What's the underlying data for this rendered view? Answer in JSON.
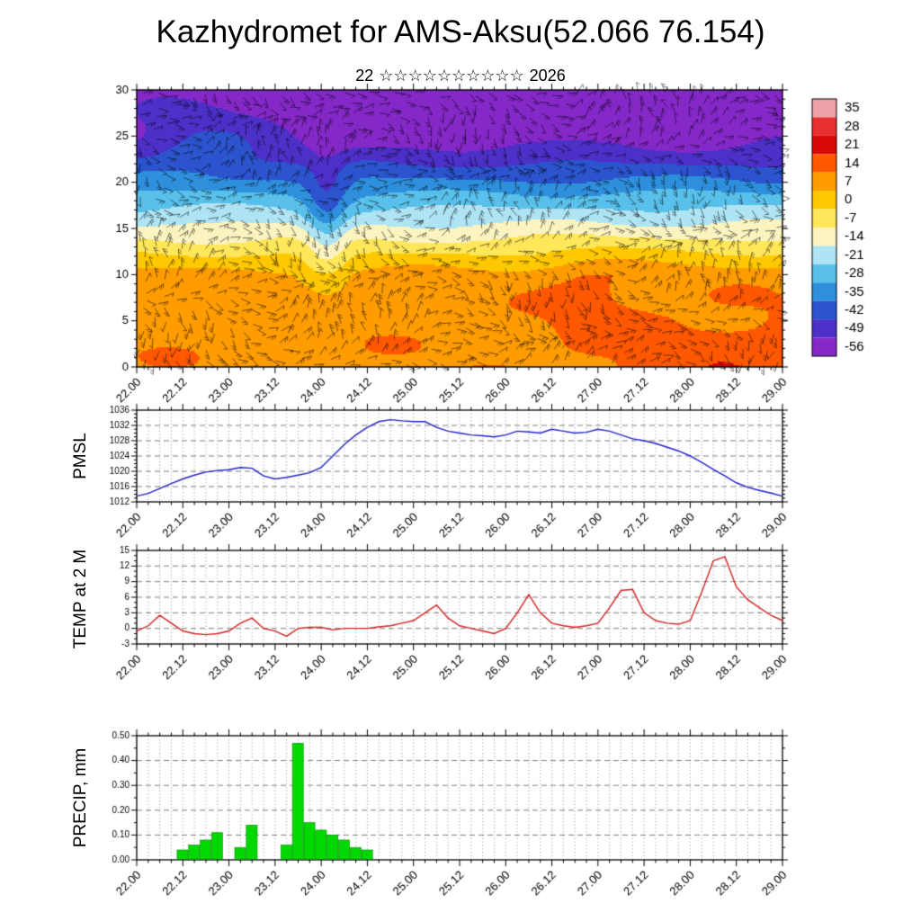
{
  "title": "Kazhydromet for AMS-Aksu(52.066 76.154)",
  "date_line": {
    "day": "22",
    "stars": "☆☆☆☆☆☆☆☆☆☆",
    "year": "2026"
  },
  "x_axis": {
    "tick_labels": [
      "22.00",
      "22.12",
      "23.00",
      "23.12",
      "24.00",
      "24.12",
      "25.00",
      "25.12",
      "26.00",
      "26.12",
      "27.00",
      "27.12",
      "28.00",
      "28.12",
      "29.00"
    ],
    "minor_step_hours": 3,
    "major_step_hours": 12,
    "range_days": 7
  },
  "chart_data": [
    {
      "type": "heatmap",
      "name": "temperature-wind-cross-section",
      "ylim": [
        0,
        30
      ],
      "yticks": [
        0,
        5,
        10,
        15,
        20,
        25,
        30
      ],
      "wind_barbs": true,
      "colorbar": {
        "ticks": [
          "35",
          "28",
          "21",
          "14",
          "7",
          "0",
          "-7",
          "-14",
          "-21",
          "-28",
          "-35",
          "-42",
          "-49",
          "-56"
        ],
        "values": [
          35,
          28,
          21,
          14,
          7,
          0,
          -7,
          -14,
          -21,
          -28,
          -35,
          -42,
          -49,
          -56
        ],
        "colors": [
          "#f0a0a8",
          "#e83030",
          "#d80808",
          "#ff5800",
          "#ff9c00",
          "#ffc800",
          "#ffe75a",
          "#fbf3c0",
          "#aee4f4",
          "#58c0ea",
          "#2e8fdc",
          "#2c54ce",
          "#4c30c8",
          "#8428c8"
        ]
      },
      "field": {
        "profile": [
          [
            0,
            9
          ],
          [
            4,
            8.8
          ],
          [
            8,
            7.5
          ],
          [
            10,
            6
          ],
          [
            11,
            2
          ],
          [
            12,
            -2
          ],
          [
            13,
            -6.5
          ],
          [
            14,
            -11
          ],
          [
            15,
            -15
          ],
          [
            16,
            -19.5
          ],
          [
            17,
            -23.5
          ],
          [
            18,
            -27.5
          ],
          [
            19,
            -32
          ],
          [
            20,
            -37
          ],
          [
            21,
            -41
          ],
          [
            22,
            -45.5
          ],
          [
            23,
            -49.5
          ],
          [
            24,
            -52.5
          ],
          [
            25,
            -54.5
          ],
          [
            26,
            -55.5
          ],
          [
            30,
            -55.5
          ]
        ],
        "cold_dip": {
          "x": 2.05,
          "xw": 0.22,
          "amp": -14,
          "yc": 16,
          "yw": 7
        },
        "upper_patch": {
          "x": 0.7,
          "xw": 0.7,
          "amp": 10,
          "yc": 24.5,
          "yw": 3.5
        },
        "warm_bulge": {
          "x": 4.9,
          "xw": 0.6,
          "amp": 5,
          "yc": 9,
          "yw": 4.5
        },
        "low_warm": {
          "x0": 4,
          "rate": 3,
          "max": 7,
          "ydecay": 6
        },
        "wave_amp": 1.5
      }
    },
    {
      "type": "line",
      "name": "pmsl",
      "ylabel": "PMSL",
      "ylim": [
        1012,
        1036
      ],
      "yticks": [
        1012,
        1016,
        1020,
        1024,
        1028,
        1032,
        1036
      ],
      "ytick_labels": [
        "1012",
        "1016",
        "1020",
        "1024",
        "1028",
        "1032",
        "1036"
      ],
      "step_days": 0.125,
      "color": "#2020cc",
      "values": [
        1013.5,
        1014.2,
        1015.5,
        1016.8,
        1018,
        1019,
        1019.8,
        1020.2,
        1020.4,
        1021,
        1020.8,
        1018.8,
        1018,
        1018.4,
        1019,
        1019.6,
        1021,
        1024,
        1027,
        1029.5,
        1031.5,
        1033,
        1033.5,
        1033.2,
        1033,
        1033,
        1031.5,
        1030.5,
        1030,
        1029.5,
        1029.3,
        1029,
        1029.5,
        1030.5,
        1030.3,
        1030,
        1031,
        1030.5,
        1030,
        1030.2,
        1031,
        1030.5,
        1029.5,
        1028.5,
        1028,
        1027.3,
        1026.3,
        1025.3,
        1024,
        1022.3,
        1020.5,
        1018.8,
        1017,
        1015.8,
        1015,
        1014.3,
        1013.5
      ]
    },
    {
      "type": "line",
      "name": "temp-2m",
      "ylabel": "TEMP at 2 M",
      "ylim": [
        -3,
        15
      ],
      "yticks": [
        -3,
        0,
        3,
        6,
        9,
        12,
        15
      ],
      "ytick_labels": [
        "-3",
        "0",
        "3",
        "6",
        "9",
        "12",
        "15"
      ],
      "step_days": 0.125,
      "color": "#d42020",
      "values": [
        -0.5,
        0.5,
        2.5,
        1,
        -0.5,
        -1,
        -1.2,
        -1,
        -0.5,
        1,
        2,
        0,
        -0.5,
        -1.5,
        0,
        0.2,
        0.2,
        -0.3,
        0,
        0,
        0,
        0.3,
        0.5,
        1,
        1.5,
        3,
        4.5,
        2,
        0.5,
        0,
        -0.5,
        -1,
        0,
        3,
        6.5,
        3,
        1,
        0.5,
        0.2,
        0.5,
        1,
        4,
        7.3,
        7.5,
        3,
        1.5,
        1,
        0.8,
        1.5,
        7,
        13,
        13.8,
        8,
        5.5,
        4,
        2.5,
        1.5
      ]
    },
    {
      "type": "bar",
      "name": "precip",
      "ylabel": "PRECIP, mm",
      "ylim": [
        0,
        0.5
      ],
      "yticks": [
        0,
        0.1,
        0.2,
        0.3,
        0.4,
        0.5
      ],
      "ytick_labels": [
        "0.00",
        "0.10",
        "0.20",
        "0.30",
        "0.40",
        "0.50"
      ],
      "bar_width_days": 0.125,
      "color": "#00d800",
      "bars": [
        [
          0.5,
          0.04
        ],
        [
          0.625,
          0.06
        ],
        [
          0.75,
          0.08
        ],
        [
          0.875,
          0.11
        ],
        [
          1.125,
          0.05
        ],
        [
          1.25,
          0.14
        ],
        [
          1.625,
          0.06
        ],
        [
          1.75,
          0.47
        ],
        [
          1.875,
          0.15
        ],
        [
          2.0,
          0.12
        ],
        [
          2.125,
          0.1
        ],
        [
          2.25,
          0.08
        ],
        [
          2.375,
          0.05
        ],
        [
          2.5,
          0.04
        ]
      ]
    }
  ]
}
